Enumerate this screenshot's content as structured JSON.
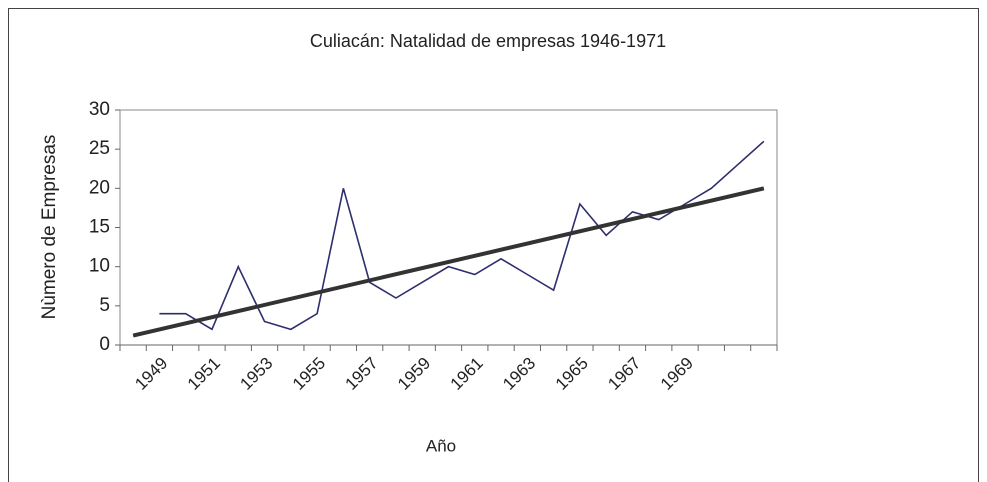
{
  "chart_data": {
    "type": "line",
    "title": "Culiacán: Natalidad de empresas 1946-1971",
    "x_label": "Año",
    "y_label": "Nùmero de Empresas",
    "categories": [
      null,
      "1949",
      null,
      "1951",
      null,
      "1953",
      null,
      "1955",
      null,
      "1957",
      null,
      "1959",
      null,
      "1961",
      null,
      "1963",
      null,
      "1965",
      null,
      "1967",
      null,
      "1969",
      null,
      null,
      null
    ],
    "series": [
      {
        "color": "#2e2e6e",
        "values": [
          null,
          4,
          4,
          2,
          10,
          3,
          2,
          4,
          20,
          8,
          6,
          8,
          10,
          9,
          11,
          9,
          7,
          18,
          14,
          17,
          16,
          18,
          20,
          23,
          26
        ]
      }
    ],
    "trendline": {
      "start": 1.2,
      "end": 20,
      "color": "#333333"
    },
    "ylim": [
      0,
      30
    ],
    "yticks": [
      0,
      5,
      10,
      15,
      20,
      25,
      30
    ],
    "grid": false
  }
}
